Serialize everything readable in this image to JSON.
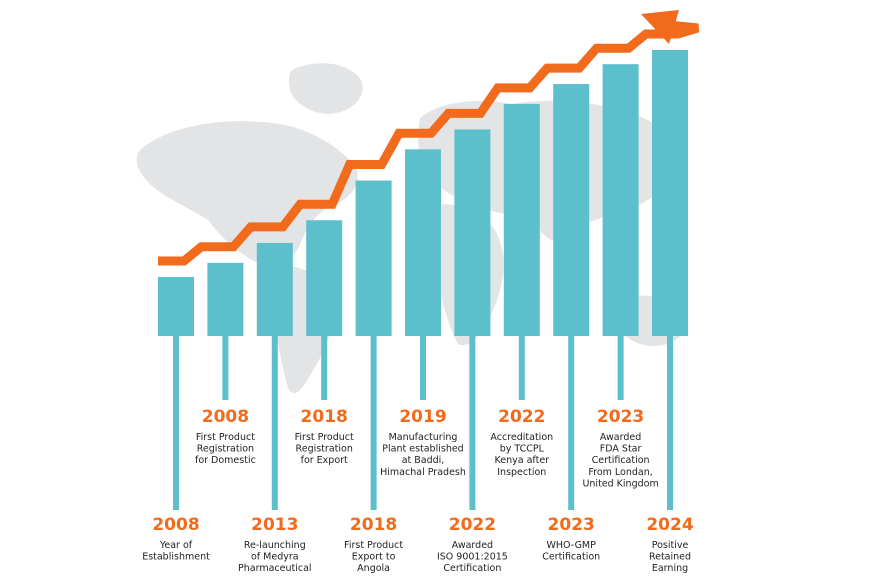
{
  "colors": {
    "bar": "#5bbfcc",
    "arrow": "#f26a1b",
    "map": "#e3e4e6",
    "year": "#f26a1b",
    "desc": "#222222"
  },
  "milestones": [
    {
      "year": "2008",
      "lines": [
        "Year of",
        "Establishment"
      ],
      "level": 0.25
    },
    {
      "year": "2008",
      "lines": [
        "First Product",
        "Registration",
        "for Domestic"
      ],
      "level": 0.3
    },
    {
      "year": "2013",
      "lines": [
        "Re-launching",
        "of Medyra",
        "Pharmaceutical"
      ],
      "level": 0.37
    },
    {
      "year": "2018",
      "lines": [
        "First Product",
        "Registration",
        "for Export"
      ],
      "level": 0.45
    },
    {
      "year": "2018",
      "lines": [
        "First Product",
        "Export to",
        "Angola"
      ],
      "level": 0.59
    },
    {
      "year": "2019",
      "lines": [
        "Manufacturing",
        "Plant established",
        "at Baddi,",
        "Himachal Pradesh"
      ],
      "level": 0.7
    },
    {
      "year": "2022",
      "lines": [
        "Awarded",
        "ISO 9001:2015",
        "Certification"
      ],
      "level": 0.77
    },
    {
      "year": "2022",
      "lines": [
        "Accreditation",
        "by TCCPL",
        "Kenya after",
        "Inspection"
      ],
      "level": 0.86
    },
    {
      "year": "2023",
      "lines": [
        "WHO-GMP",
        "Certification"
      ],
      "level": 0.93
    },
    {
      "year": "2023",
      "lines": [
        "Awarded",
        "FDA Star",
        "Certification",
        "From Londan,",
        "United Kingdom"
      ],
      "level": 1.0
    },
    {
      "year": "2024",
      "lines": [
        "Positive",
        "Retained",
        "Earning"
      ],
      "level": 1.05
    }
  ]
}
